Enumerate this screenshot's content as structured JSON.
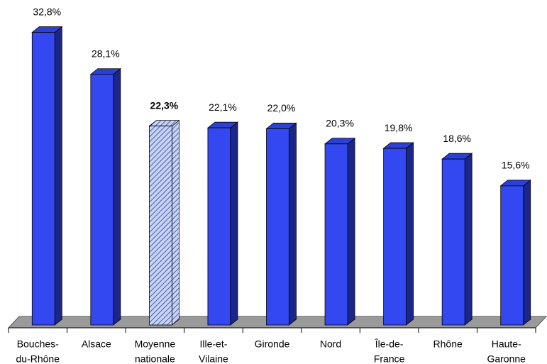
{
  "chart_data": {
    "type": "bar3d",
    "categories": [
      [
        "Bouches-",
        "du-Rhône"
      ],
      [
        "Alsace"
      ],
      [
        "Moyenne",
        "nationale"
      ],
      [
        "Ille-et-",
        "Vilaine"
      ],
      [
        "Gironde"
      ],
      [
        "Nord"
      ],
      [
        "Île-de-",
        "France"
      ],
      [
        "Rhône"
      ],
      [
        "Haute-",
        "Garonne"
      ]
    ],
    "values": [
      32.8,
      28.1,
      22.3,
      22.1,
      22.0,
      20.3,
      19.8,
      18.6,
      15.6
    ],
    "value_labels": [
      "32,8%",
      "28,1%",
      "22,3%",
      "22,1%",
      "22,0%",
      "20,3%",
      "19,8%",
      "18,6%",
      "15,6%"
    ],
    "color": "#3348f0",
    "highlight_index": 2,
    "ylim": [
      0,
      35
    ]
  }
}
